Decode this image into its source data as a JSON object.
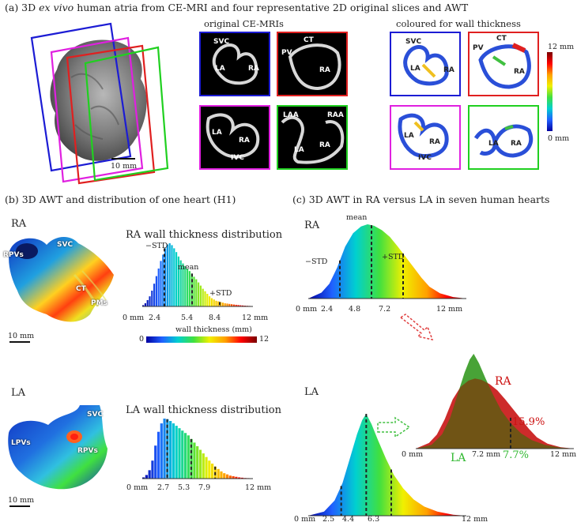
{
  "section_a": {
    "title_prefix": "(a) 3D ",
    "title_italic": "ex vivo",
    "title_suffix": " human atria from CE-MRI and four representative 2D original slices and AWT",
    "original_label": "original CE-MRIs",
    "coloured_label": "coloured for wall thickness",
    "scale_bar": "10 mm",
    "colorbar_max": "12 mm",
    "colorbar_min": "0 mm",
    "frame_colors": [
      "#1c1cd4",
      "#e02020",
      "#e020e0",
      "#20d020"
    ],
    "panels": {
      "p1": [
        "SVC",
        "LA",
        "RA"
      ],
      "p2": [
        "CT",
        "PV",
        "RA"
      ],
      "p3": [
        "LA",
        "RA",
        "IVC"
      ],
      "p4": [
        "LAA",
        "RAA",
        "LA",
        "RA"
      ],
      "c1": [
        "SVC",
        "LA",
        "RA"
      ],
      "c2": [
        "CT",
        "PV",
        "RA"
      ],
      "c3": [
        "LA",
        "RA",
        "IVC"
      ],
      "c4": [
        "LA",
        "RA"
      ]
    }
  },
  "section_b": {
    "title": "(b) 3D AWT and distribution of one heart (H1)",
    "ra_label": "RA",
    "la_label": "LA",
    "ra_anat": [
      "RPVs",
      "SVC",
      "CT",
      "PMs"
    ],
    "la_anat": [
      "SVC",
      "LPVs",
      "RPVs"
    ],
    "scale_bar": "10 mm",
    "wall_colorbar_title": "wall thickness (mm)",
    "wall_colorbar_min": "0",
    "wall_colorbar_max": "12"
  },
  "section_c": {
    "title": "(c) 3D AWT in RA versus LA in seven human hearts",
    "ra_label": "RA",
    "la_label": "LA",
    "overlay_ra": "RA",
    "overlay_la": "LA",
    "overlay_ra_pct": "15.9%",
    "overlay_la_pct": "7.7%",
    "overlay_axis": [
      "0 mm",
      "7.2 mm",
      "12 mm"
    ]
  },
  "chart_data": [
    {
      "type": "bar",
      "title": "RA wall thickness distribution",
      "x_unit": "mm",
      "xlim": [
        0,
        12
      ],
      "x_tick_labels": [
        "0 mm",
        "2.4",
        "5.4",
        "8.4",
        "12 mm"
      ],
      "markers": [
        {
          "label": "−STD",
          "x": 2.4
        },
        {
          "label": "mean",
          "x": 5.4
        },
        {
          "label": "+STD",
          "x": 8.4
        }
      ],
      "values": [
        0.02,
        0.05,
        0.1,
        0.16,
        0.25,
        0.36,
        0.48,
        0.6,
        0.72,
        0.82,
        0.92,
        0.98,
        1.0,
        0.97,
        0.92,
        0.86,
        0.79,
        0.73,
        0.68,
        0.64,
        0.6,
        0.56,
        0.52,
        0.47,
        0.43,
        0.38,
        0.33,
        0.28,
        0.24,
        0.2,
        0.16,
        0.13,
        0.11,
        0.09,
        0.08,
        0.07,
        0.06,
        0.05,
        0.045,
        0.04,
        0.035,
        0.03,
        0.026,
        0.022,
        0.018,
        0.015,
        0.012,
        0.01,
        0.008,
        0.006
      ]
    },
    {
      "type": "bar",
      "title": "LA wall thickness distribution",
      "x_unit": "mm",
      "xlim": [
        0,
        12
      ],
      "x_tick_labels": [
        "0 mm",
        "2.7",
        "5.3",
        "7.9",
        "12 mm"
      ],
      "markers": [
        {
          "x": 2.7
        },
        {
          "x": 5.3
        },
        {
          "x": 7.9
        }
      ],
      "values": [
        0.02,
        0.06,
        0.14,
        0.3,
        0.55,
        0.78,
        0.92,
        1.0,
        0.99,
        0.96,
        0.92,
        0.88,
        0.84,
        0.8,
        0.76,
        0.72,
        0.66,
        0.6,
        0.54,
        0.48,
        0.42,
        0.36,
        0.3,
        0.25,
        0.2,
        0.16,
        0.12,
        0.09,
        0.07,
        0.05,
        0.04,
        0.03,
        0.02,
        0.015,
        0.01,
        0.008,
        0.005
      ]
    },
    {
      "type": "area",
      "title": "RA",
      "x_unit": "mm",
      "xlim": [
        0,
        12
      ],
      "x_tick_labels": [
        "0 mm",
        "2.4",
        "4.8",
        "7.2",
        "12 mm"
      ],
      "markers": [
        {
          "label": "−STD",
          "x": 2.4
        },
        {
          "label": "mean",
          "x": 4.8
        },
        {
          "label": "+STD",
          "x": 7.2
        }
      ],
      "x": [
        0,
        1.0,
        1.6,
        2.2,
        2.8,
        3.4,
        4.0,
        4.5,
        5.0,
        5.6,
        6.2,
        6.8,
        7.4,
        8.0,
        8.6,
        9.2,
        10.0,
        11.0,
        12.0
      ],
      "y": [
        0,
        0.08,
        0.2,
        0.42,
        0.7,
        0.88,
        0.97,
        1.0,
        0.98,
        0.92,
        0.83,
        0.7,
        0.56,
        0.42,
        0.28,
        0.16,
        0.07,
        0.02,
        0.0
      ]
    },
    {
      "type": "area",
      "title": "LA",
      "x_unit": "mm",
      "xlim": [
        0,
        12
      ],
      "x_tick_labels": [
        "0 mm",
        "2.5",
        "4.4",
        "6.3",
        "12 mm"
      ],
      "markers": [
        {
          "x": 2.5
        },
        {
          "x": 4.4
        },
        {
          "x": 6.3
        }
      ],
      "x": [
        0,
        1.2,
        2.0,
        2.6,
        3.2,
        3.7,
        4.1,
        4.4,
        4.8,
        5.3,
        5.9,
        6.5,
        7.2,
        8.0,
        8.8,
        9.8,
        11.0,
        12.0
      ],
      "y": [
        0,
        0.04,
        0.15,
        0.32,
        0.58,
        0.8,
        0.94,
        1.0,
        0.9,
        0.74,
        0.56,
        0.4,
        0.27,
        0.16,
        0.09,
        0.04,
        0.01,
        0.0
      ]
    }
  ]
}
